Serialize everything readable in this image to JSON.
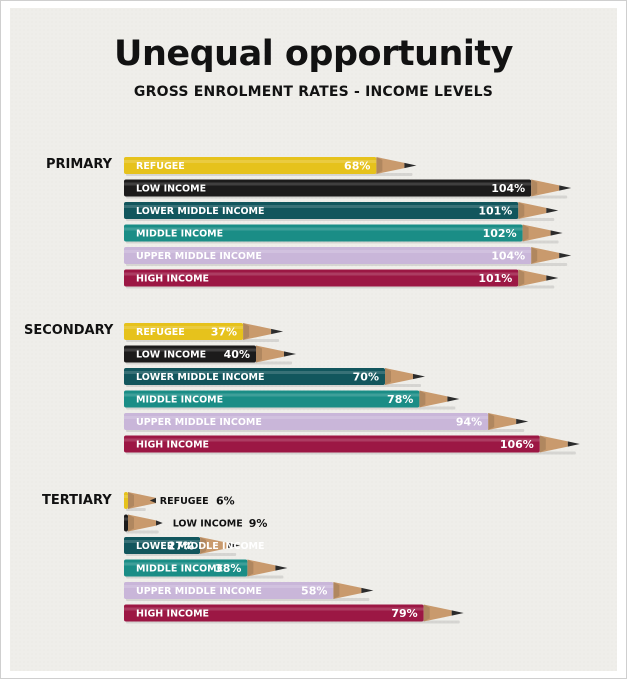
{
  "chart_data": {
    "type": "bar",
    "orientation": "horizontal",
    "title": "Unequal opportunity",
    "subtitle": "GROSS ENROLMENT RATES - INCOME LEVELS",
    "unit": "%",
    "categories": [
      "REFUGEE",
      "LOW INCOME",
      "LOWER MIDDLE INCOME",
      "MIDDLE INCOME",
      "UPPER MIDDLE INCOME",
      "HIGH INCOME"
    ],
    "colors": [
      "#e6c21c",
      "#1c1b1b",
      "#12565d",
      "#1a8d86",
      "#c9b6d9",
      "#9c1744"
    ],
    "label_colors": [
      "#ffffff",
      "#ffffff",
      "#ffffff",
      "#ffffff",
      "#ffffff",
      "#ffffff"
    ],
    "groups": [
      {
        "name": "PRIMARY",
        "values": [
          68,
          104,
          101,
          102,
          104,
          101
        ]
      },
      {
        "name": "SECONDARY",
        "values": [
          37,
          40,
          70,
          78,
          94,
          106
        ]
      },
      {
        "name": "TERTIARY",
        "values": [
          6,
          9,
          27,
          38,
          58,
          79
        ]
      }
    ],
    "grid": false,
    "legend": "none"
  }
}
